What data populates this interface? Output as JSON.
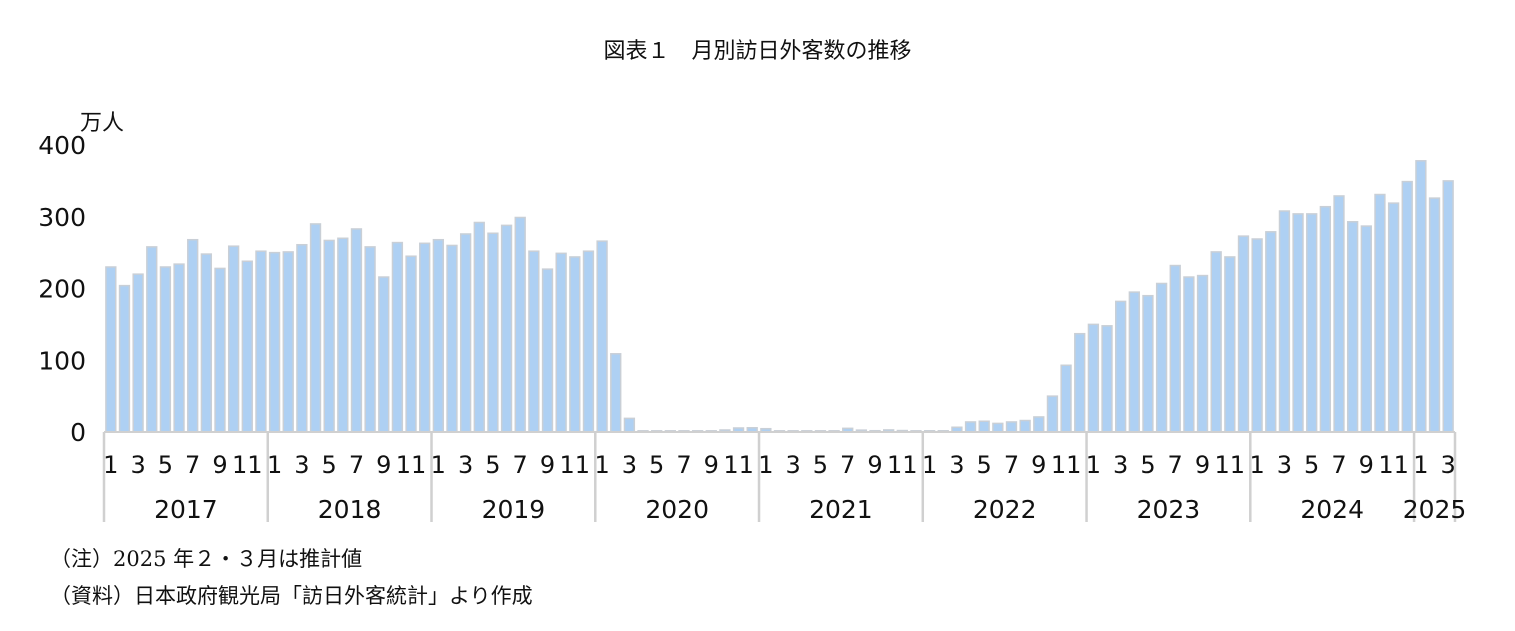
{
  "chart_data": {
    "type": "bar",
    "title": "図表１　月別訪日外客数の推移",
    "ylabel": "万人",
    "ylim": [
      0,
      400
    ],
    "yticks": [
      0,
      100,
      200,
      300,
      400
    ],
    "grid": false,
    "month_tick_labels": [
      "1",
      "3",
      "5",
      "7",
      "9",
      "11"
    ],
    "final_year_tick_labels": [
      "1",
      "3"
    ],
    "years": [
      "2017",
      "2018",
      "2019",
      "2020",
      "2021",
      "2022",
      "2023",
      "2024",
      "2025"
    ],
    "bar_color": "#aed0f3",
    "bar_edge_color": "#c9cfd6",
    "axis_color": "#d0d0d0",
    "values": [
      230,
      204,
      220,
      258,
      230,
      234,
      268,
      248,
      228,
      259,
      238,
      252,
      250,
      251,
      261,
      290,
      267,
      270,
      283,
      258,
      216,
      264,
      245,
      263,
      268,
      260,
      276,
      292,
      277,
      288,
      299,
      252,
      227,
      249,
      244,
      252,
      266,
      109,
      19,
      0.3,
      0.2,
      0.3,
      0.4,
      0.9,
      1.4,
      2.8,
      5.6,
      5.9,
      4.6,
      0.7,
      1.2,
      1.1,
      1.0,
      0.9,
      5.1,
      2.6,
      1.8,
      2.9,
      2.0,
      1.2,
      1.7,
      1.7,
      6.6,
      14,
      15,
      12,
      14,
      16,
      21,
      50,
      93,
      137,
      150,
      148,
      182,
      195,
      190,
      207,
      232,
      216,
      218,
      251,
      244,
      273,
      269,
      279,
      308,
      304,
      304,
      314,
      329,
      293,
      287,
      331,
      319,
      349,
      378,
      326,
      350
    ]
  },
  "notes": {
    "note1": "（注）2025 年２・３月は推計値",
    "note2": "（資料）日本政府観光局「訪日外客統計」より作成"
  }
}
